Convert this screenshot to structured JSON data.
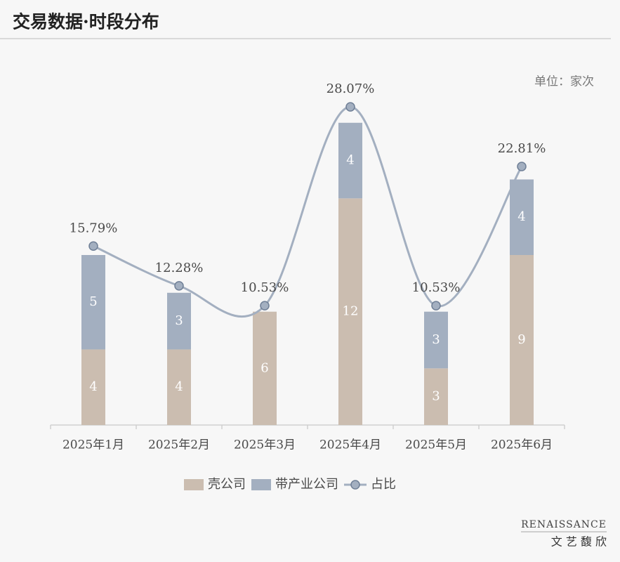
{
  "chart_data": {
    "type": "stacked-bar-line",
    "title": "交易数据·时段分布",
    "unit_label": "单位：家次",
    "categories": [
      "2025年1月",
      "2025年2月",
      "2025年3月",
      "2025年4月",
      "2025年5月",
      "2025年6月"
    ],
    "series": [
      {
        "name": "壳公司",
        "color": "#cbbdb0",
        "values": [
          4,
          4,
          6,
          12,
          3,
          9
        ]
      },
      {
        "name": "带产业公司",
        "color": "#a3afc0",
        "values": [
          5,
          3,
          null,
          4,
          3,
          4
        ]
      },
      {
        "name": "占比",
        "color": "#a3afc0",
        "axis": "y2",
        "values": [
          15.79,
          12.28,
          10.53,
          28.07,
          10.53,
          22.81
        ],
        "value_labels": [
          "15.79%",
          "12.28%",
          "10.53%",
          "28.07%",
          "10.53%",
          "22.81%"
        ]
      }
    ],
    "ylim": [
      0,
      18
    ],
    "y2lim": [
      0,
      30
    ]
  },
  "footer": {
    "brand": "RENAISSANCE",
    "brand_cn": "文 艺 馥 欣"
  }
}
